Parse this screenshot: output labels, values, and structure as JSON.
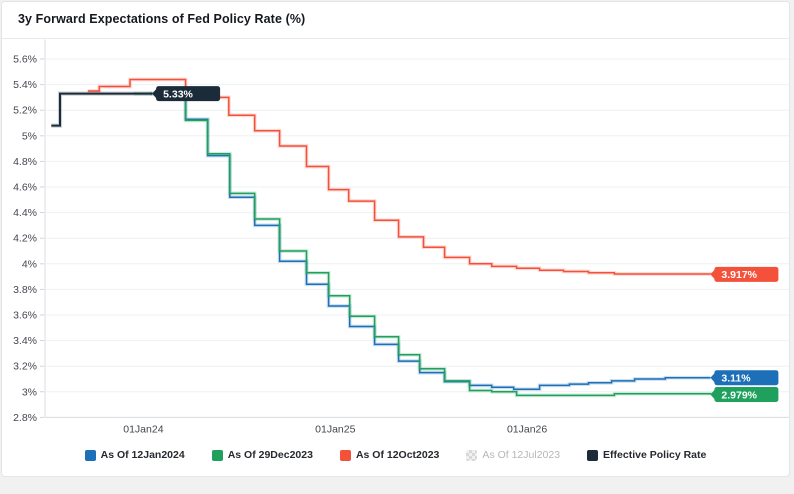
{
  "card": {
    "title": "3y Forward Expectations of Fed Policy Rate (%)"
  },
  "chart_data": {
    "type": "line",
    "step": "after",
    "title": "3y Forward Expectations of Fed Policy Rate (%)",
    "xlabel": "",
    "ylabel": "",
    "grid": "horizontal-only",
    "legend_position": "bottom-center",
    "ylim": [
      2.8,
      5.6
    ],
    "xlim_years": [
      2023.487,
      2027.37
    ],
    "y_ticks": [
      {
        "label": "5.6%",
        "value": 5.6
      },
      {
        "label": "5.4%",
        "value": 5.4
      },
      {
        "label": "5.2%",
        "value": 5.2
      },
      {
        "label": "5%",
        "value": 5.0
      },
      {
        "label": "4.8%",
        "value": 4.8
      },
      {
        "label": "4.6%",
        "value": 4.6
      },
      {
        "label": "4.4%",
        "value": 4.4
      },
      {
        "label": "4.2%",
        "value": 4.2
      },
      {
        "label": "4%",
        "value": 4.0
      },
      {
        "label": "3.8%",
        "value": 3.8
      },
      {
        "label": "3.6%",
        "value": 3.6
      },
      {
        "label": "3.4%",
        "value": 3.4
      },
      {
        "label": "3.2%",
        "value": 3.2
      },
      {
        "label": "3%",
        "value": 3.0
      },
      {
        "label": "2.8%",
        "value": 2.8
      }
    ],
    "x_ticks": [
      {
        "label": "01Jan24",
        "year": 2024
      },
      {
        "label": "01Jan25",
        "year": 2025
      },
      {
        "label": "01Jan26",
        "year": 2026
      }
    ],
    "series": [
      {
        "name": "As Of 12Jan2024",
        "color": "#1d6fb8",
        "end_label": "3.11%",
        "points": [
          [
            2024.035,
            5.33
          ],
          [
            2024.22,
            5.13
          ],
          [
            2024.335,
            4.845
          ],
          [
            2024.45,
            4.52
          ],
          [
            2024.58,
            4.3
          ],
          [
            2024.71,
            4.02
          ],
          [
            2024.85,
            3.84
          ],
          [
            2024.965,
            3.67
          ],
          [
            2025.075,
            3.51
          ],
          [
            2025.205,
            3.37
          ],
          [
            2025.33,
            3.24
          ],
          [
            2025.44,
            3.15
          ],
          [
            2025.57,
            3.08
          ],
          [
            2025.7,
            3.05
          ],
          [
            2025.815,
            3.035
          ],
          [
            2025.93,
            3.02
          ],
          [
            2026.065,
            3.05
          ],
          [
            2026.22,
            3.06
          ],
          [
            2026.32,
            3.07
          ],
          [
            2026.44,
            3.085
          ],
          [
            2026.56,
            3.1
          ],
          [
            2026.72,
            3.11
          ],
          [
            2026.955,
            3.11
          ]
        ]
      },
      {
        "name": "As Of 29Dec2023",
        "color": "#1fa05c",
        "end_label": "2.979%",
        "points": [
          [
            2023.95,
            5.33
          ],
          [
            2024.22,
            5.12
          ],
          [
            2024.335,
            4.86
          ],
          [
            2024.45,
            4.55
          ],
          [
            2024.58,
            4.35
          ],
          [
            2024.71,
            4.1
          ],
          [
            2024.85,
            3.93
          ],
          [
            2024.965,
            3.75
          ],
          [
            2025.075,
            3.59
          ],
          [
            2025.205,
            3.43
          ],
          [
            2025.33,
            3.29
          ],
          [
            2025.44,
            3.18
          ],
          [
            2025.57,
            3.085
          ],
          [
            2025.7,
            3.01
          ],
          [
            2025.815,
            3.0
          ],
          [
            2025.945,
            2.972
          ],
          [
            2026.455,
            2.985
          ],
          [
            2026.955,
            2.979
          ]
        ]
      },
      {
        "name": "As Of 12Oct2023",
        "color": "#f4513b",
        "end_label": "3.917%",
        "points": [
          [
            2023.71,
            5.35
          ],
          [
            2023.77,
            5.385
          ],
          [
            2023.93,
            5.44
          ],
          [
            2024.22,
            5.3
          ],
          [
            2024.445,
            5.16
          ],
          [
            2024.58,
            5.04
          ],
          [
            2024.71,
            4.92
          ],
          [
            2024.85,
            4.76
          ],
          [
            2024.965,
            4.58
          ],
          [
            2025.07,
            4.49
          ],
          [
            2025.205,
            4.34
          ],
          [
            2025.33,
            4.21
          ],
          [
            2025.46,
            4.13
          ],
          [
            2025.57,
            4.05
          ],
          [
            2025.7,
            4.0
          ],
          [
            2025.815,
            3.98
          ],
          [
            2025.945,
            3.965
          ],
          [
            2026.065,
            3.95
          ],
          [
            2026.19,
            3.94
          ],
          [
            2026.32,
            3.93
          ],
          [
            2026.455,
            3.92
          ],
          [
            2026.955,
            3.917
          ]
        ]
      },
      {
        "name": "Effective Policy Rate",
        "color": "#1c2b3a",
        "end_label": "5.33%",
        "thick": true,
        "points": [
          [
            2023.52,
            5.08
          ],
          [
            2023.565,
            5.33
          ],
          [
            2024.045,
            5.33
          ]
        ]
      }
    ],
    "legend": [
      {
        "label": "As Of 12Jan2024",
        "color": "#1d6fb8",
        "enabled": true
      },
      {
        "label": "As Of 29Dec2023",
        "color": "#1fa05c",
        "enabled": true
      },
      {
        "label": "As Of 12Oct2023",
        "color": "#f4513b",
        "enabled": true
      },
      {
        "label": "As Of 12Jul2023",
        "color": "#d9d9d9",
        "enabled": false
      },
      {
        "label": "Effective Policy Rate",
        "color": "#1c2b3a",
        "enabled": true
      }
    ],
    "colors": {
      "grid": "#eef1f4",
      "axis_border": "#d9dde2",
      "tick_dash": "#cfd4da",
      "tick_text": "#42464d"
    }
  }
}
